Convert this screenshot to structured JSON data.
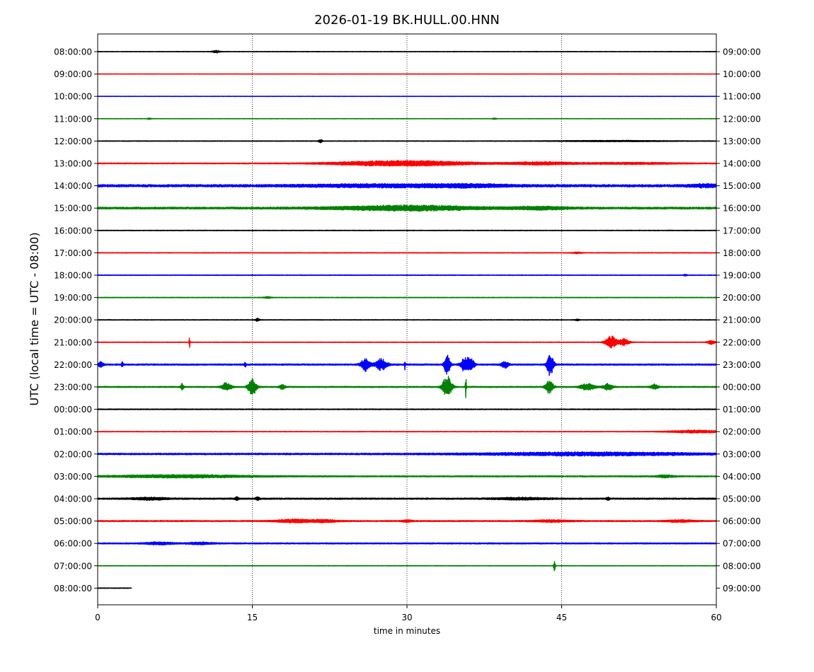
{
  "chart_data": {
    "type": "line",
    "title": "2026-01-19 BK.HULL.00.HNN",
    "xlabel": "time in minutes",
    "ylabel": "UTC (local time = UTC - 08:00)",
    "xlim": [
      0,
      60
    ],
    "x_ticks": [
      "0",
      "15",
      "30",
      "45",
      "60"
    ],
    "x_tick_values": [
      0,
      15,
      30,
      45,
      60
    ],
    "grid": "vertical dotted at 15, 30, 45",
    "color_cycle": [
      "#000000",
      "#ff0000",
      "#0000ff",
      "#008000"
    ],
    "left_tick_labels": [
      "08:00:00",
      "09:00:00",
      "10:00:00",
      "11:00:00",
      "12:00:00",
      "13:00:00",
      "14:00:00",
      "15:00:00",
      "16:00:00",
      "17:00:00",
      "18:00:00",
      "19:00:00",
      "20:00:00",
      "21:00:00",
      "22:00:00",
      "23:00:00",
      "00:00:00",
      "01:00:00",
      "02:00:00",
      "03:00:00",
      "04:00:00",
      "05:00:00",
      "06:00:00",
      "07:00:00",
      "08:00:00"
    ],
    "right_tick_labels": [
      "09:00:00",
      "10:00:00",
      "11:00:00",
      "12:00:00",
      "13:00:00",
      "14:00:00",
      "15:00:00",
      "16:00:00",
      "17:00:00",
      "18:00:00",
      "19:00:00",
      "20:00:00",
      "21:00:00",
      "22:00:00",
      "23:00:00",
      "00:00:00",
      "01:00:00",
      "02:00:00",
      "03:00:00",
      "04:00:00",
      "05:00:00",
      "06:00:00",
      "07:00:00",
      "08:00:00",
      "09:00:00"
    ],
    "traces": [
      {
        "start_min": 0,
        "end_min": 60,
        "base_noise": 0.25,
        "events": [
          [
            11.5,
            0.4,
            1.6
          ]
        ]
      },
      {
        "start_min": 0,
        "end_min": 60,
        "base_noise": 0.2,
        "events": []
      },
      {
        "start_min": 0,
        "end_min": 60,
        "base_noise": 0.2,
        "events": []
      },
      {
        "start_min": 0,
        "end_min": 60,
        "base_noise": 0.2,
        "events": [
          [
            5,
            0.2,
            1.0
          ],
          [
            38.5,
            0.2,
            0.8
          ]
        ]
      },
      {
        "start_min": 0,
        "end_min": 60,
        "base_noise": 0.3,
        "events": [
          [
            21.6,
            0.2,
            2.0
          ],
          [
            50,
            6,
            0.6
          ]
        ]
      },
      {
        "start_min": 0,
        "end_min": 60,
        "base_noise": 0.5,
        "events": [
          [
            27.5,
            6,
            2.5
          ],
          [
            33,
            5,
            1.8
          ],
          [
            43,
            4,
            1.6
          ],
          [
            52,
            5,
            1.0
          ]
        ]
      },
      {
        "start_min": 0,
        "end_min": 60,
        "base_noise": 1.2,
        "events": [
          [
            28,
            10,
            1.4
          ],
          [
            36,
            4,
            1.2
          ],
          [
            59,
            2,
            1.4
          ]
        ]
      },
      {
        "start_min": 0,
        "end_min": 60,
        "base_noise": 1.0,
        "events": [
          [
            30,
            8,
            2.8
          ],
          [
            43,
            3,
            1.6
          ]
        ]
      },
      {
        "start_min": 0,
        "end_min": 60,
        "base_noise": 0.3,
        "events": []
      },
      {
        "start_min": 0,
        "end_min": 60,
        "base_noise": 0.3,
        "events": [
          [
            46.5,
            0.5,
            0.8
          ]
        ]
      },
      {
        "start_min": 0,
        "end_min": 60,
        "base_noise": 0.3,
        "events": [
          [
            57,
            0.2,
            1.0
          ]
        ]
      },
      {
        "start_min": 0,
        "end_min": 60,
        "base_noise": 0.3,
        "events": [
          [
            16.5,
            0.4,
            1.0
          ]
        ]
      },
      {
        "start_min": 0,
        "end_min": 60,
        "base_noise": 0.3,
        "events": [
          [
            15.5,
            0.2,
            1.8
          ],
          [
            46.5,
            0.2,
            1.0
          ]
        ]
      },
      {
        "start_min": 0,
        "end_min": 60,
        "base_noise": 0.3,
        "events": [
          [
            8.9,
            0.05,
            8
          ],
          [
            49.8,
            0.6,
            8
          ],
          [
            51,
            0.6,
            4
          ],
          [
            59.5,
            0.4,
            2.5
          ]
        ]
      },
      {
        "start_min": 0,
        "end_min": 60,
        "base_noise": 0.7,
        "events": [
          [
            0.3,
            0.3,
            3
          ],
          [
            2.4,
            0.1,
            3
          ],
          [
            14.3,
            0.1,
            3
          ],
          [
            26,
            0.5,
            8
          ],
          [
            27.5,
            0.6,
            7
          ],
          [
            29.8,
            0.05,
            6
          ],
          [
            33.9,
            0.3,
            13
          ],
          [
            35.7,
            0.5,
            10
          ],
          [
            36.3,
            0.3,
            5
          ],
          [
            39.5,
            0.4,
            4
          ],
          [
            43.9,
            0.35,
            14
          ]
        ]
      },
      {
        "start_min": 0,
        "end_min": 60,
        "base_noise": 0.6,
        "events": [
          [
            8.2,
            0.15,
            4
          ],
          [
            12.5,
            0.5,
            5
          ],
          [
            15,
            0.45,
            10
          ],
          [
            17.9,
            0.3,
            3
          ],
          [
            33.9,
            0.5,
            13
          ],
          [
            35.7,
            0.05,
            14
          ],
          [
            43.8,
            0.4,
            8
          ],
          [
            47.5,
            0.8,
            4
          ],
          [
            49.5,
            0.5,
            4
          ],
          [
            54,
            0.4,
            3
          ]
        ]
      },
      {
        "start_min": 0,
        "end_min": 60,
        "base_noise": 0.4,
        "events": []
      },
      {
        "start_min": 0,
        "end_min": 60,
        "base_noise": 0.3,
        "events": [
          [
            58,
            3,
            1.6
          ]
        ]
      },
      {
        "start_min": 0,
        "end_min": 60,
        "base_noise": 0.8,
        "events": [
          [
            48,
            12,
            1.8
          ]
        ]
      },
      {
        "start_min": 0,
        "end_min": 60,
        "base_noise": 0.6,
        "events": [
          [
            8,
            8,
            1.6
          ],
          [
            55,
            1,
            1.4
          ]
        ]
      },
      {
        "start_min": 0,
        "end_min": 60,
        "base_noise": 0.7,
        "events": [
          [
            5,
            2,
            1.4
          ],
          [
            13.5,
            0.2,
            2
          ],
          [
            15.5,
            0.2,
            2
          ],
          [
            41,
            3,
            1.2
          ],
          [
            49.5,
            0.2,
            1.5
          ]
        ]
      },
      {
        "start_min": 0,
        "end_min": 60,
        "base_noise": 0.6,
        "events": [
          [
            19,
            2,
            2
          ],
          [
            22,
            1.5,
            1.5
          ],
          [
            30,
            0.5,
            1.4
          ],
          [
            44,
            2,
            1.2
          ],
          [
            56.5,
            1.5,
            1.3
          ]
        ]
      },
      {
        "start_min": 0,
        "end_min": 60,
        "base_noise": 0.6,
        "events": [
          [
            6,
            1.5,
            1.4
          ],
          [
            10,
            1.5,
            1.2
          ]
        ]
      },
      {
        "start_min": 0,
        "end_min": 60,
        "base_noise": 0.25,
        "events": [
          [
            44.3,
            0.1,
            6
          ]
        ]
      },
      {
        "start_min": 0,
        "end_min": 3.3,
        "base_noise": 0.3,
        "events": []
      }
    ]
  }
}
